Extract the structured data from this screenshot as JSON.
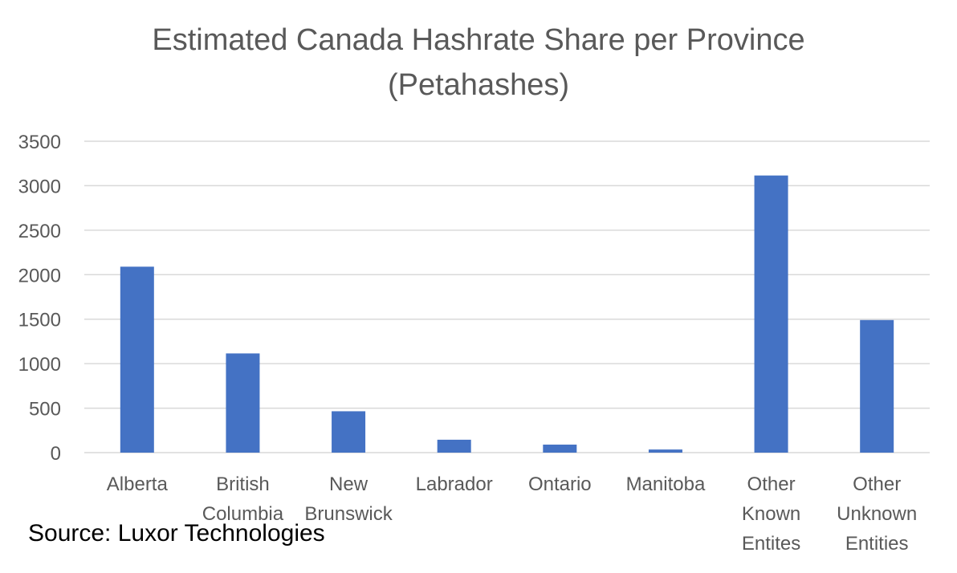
{
  "chart_data": {
    "type": "bar",
    "title": "Estimated Canada Hashrate Share per Province (Petahashes)",
    "title_lines": [
      "Estimated Canada Hashrate Share per Province",
      "(Petahashes)"
    ],
    "categories": [
      [
        "Alberta"
      ],
      [
        "British",
        "Columbia"
      ],
      [
        "New",
        "Brunswick"
      ],
      [
        "Labrador"
      ],
      [
        "Ontario"
      ],
      [
        "Manitoba"
      ],
      [
        "Other",
        "Known",
        "Entites"
      ],
      [
        "Other",
        "Unknown",
        "Entities"
      ]
    ],
    "values": [
      2090,
      1115,
      465,
      145,
      90,
      35,
      3115,
      1490
    ],
    "ylim": [
      0,
      3500
    ],
    "yticks": [
      0,
      500,
      1000,
      1500,
      2000,
      2500,
      3000,
      3500
    ],
    "grid": true,
    "legend": "none",
    "xlabel": "",
    "ylabel": ""
  },
  "colors": {
    "bar": "#4472C4",
    "grid": "#D9D9D9",
    "axis_text": "#595959",
    "title": "#595959"
  },
  "source": "Source: Luxor Technologies"
}
